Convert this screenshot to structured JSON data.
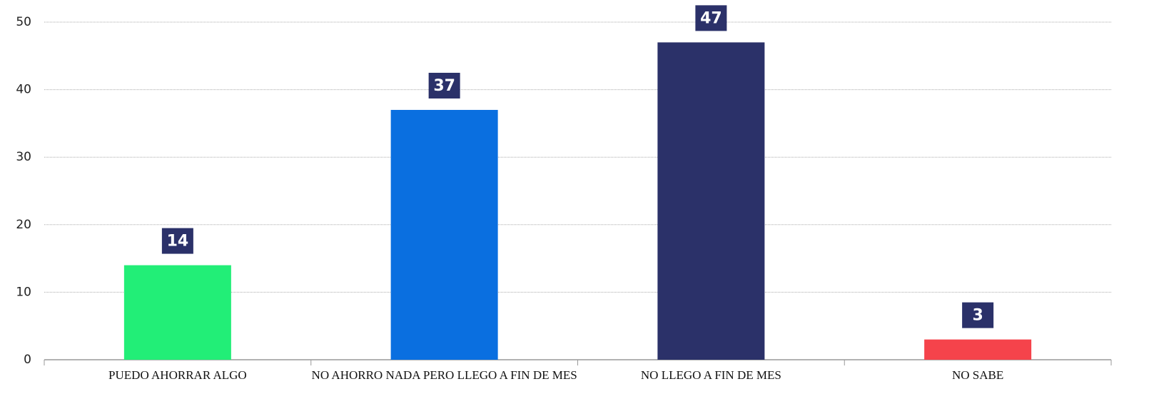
{
  "chart_data": {
    "type": "bar",
    "categories": [
      "PUEDO AHORRAR ALGO",
      "NO AHORRO NADA PERO LLEGO A FIN DE MES",
      "NO LLEGO A FIN DE MES",
      "NO SABE"
    ],
    "values": [
      14,
      37,
      47,
      3
    ],
    "colors": [
      "#22ee77",
      "#0a6fe0",
      "#2b3169",
      "#f5434b"
    ],
    "ylim": [
      0,
      50
    ],
    "yticks": [
      0,
      10,
      20,
      30,
      40,
      50
    ],
    "grid": true
  }
}
